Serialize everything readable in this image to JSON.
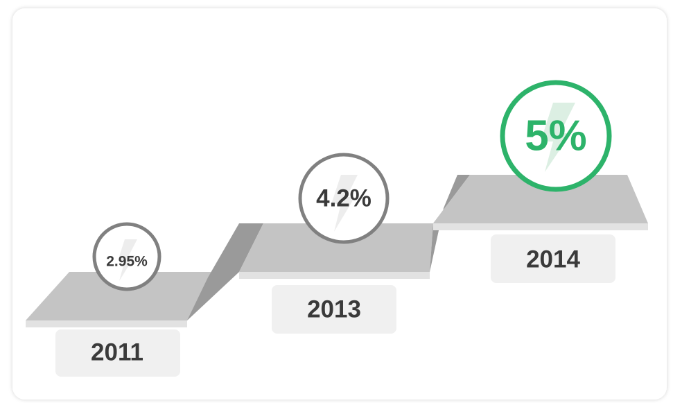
{
  "steps": [
    {
      "rate": "2.95%",
      "year": "2011"
    },
    {
      "rate": "4.2%",
      "year": "2013"
    },
    {
      "rate": "5%",
      "year": "2014"
    }
  ]
}
